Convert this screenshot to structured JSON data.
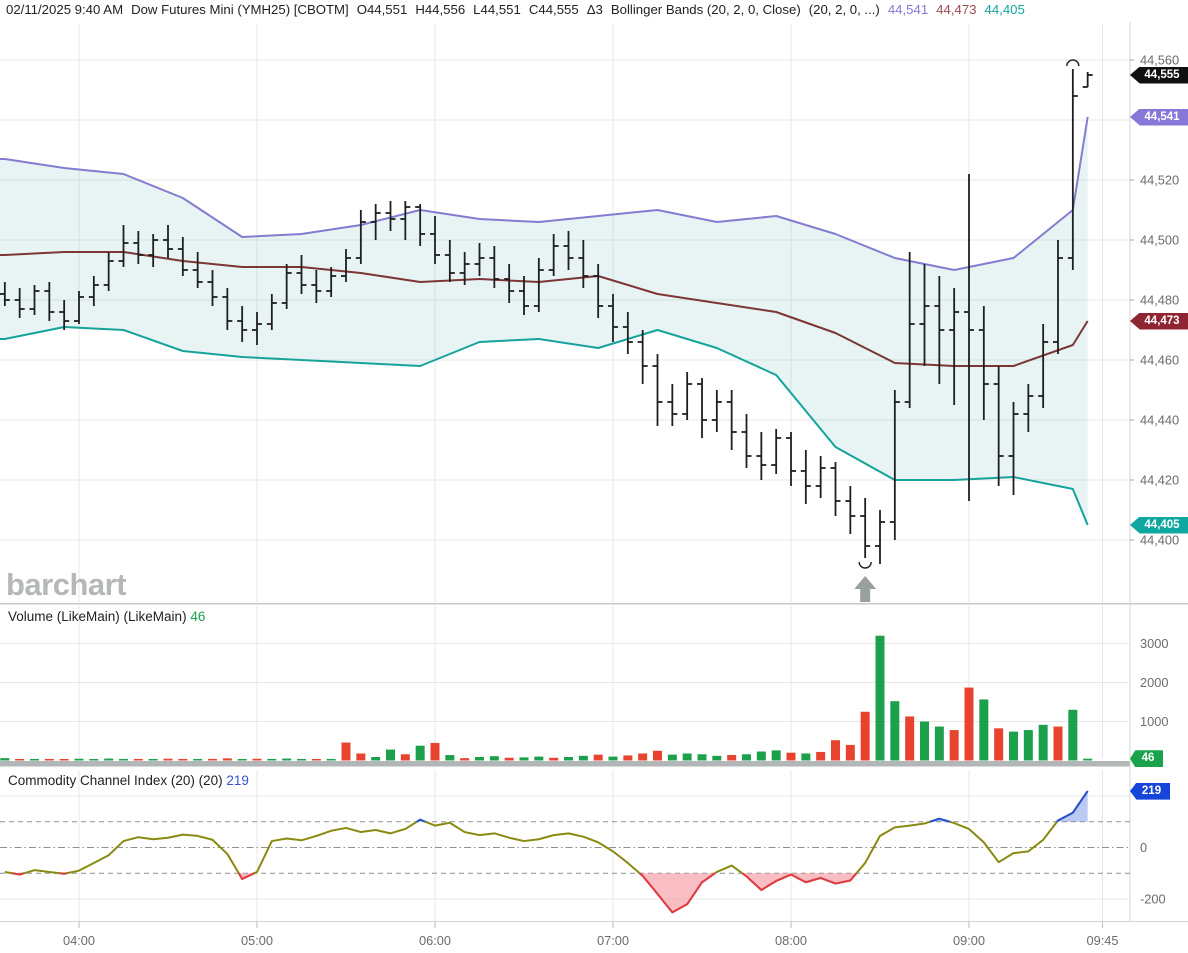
{
  "header": {
    "segments": [
      {
        "text": "02/11/2025 9:40 AM",
        "color": "#222222"
      },
      {
        "text": "Dow Futures Mini (YMH25) [CBOTM]",
        "color": "#222222"
      },
      {
        "text": "O44,551",
        "color": "#222222"
      },
      {
        "text": "H44,556",
        "color": "#222222"
      },
      {
        "text": "L44,551",
        "color": "#222222"
      },
      {
        "text": "C44,555",
        "color": "#222222"
      },
      {
        "text": "Δ3",
        "color": "#222222"
      },
      {
        "text": "Bollinger Bands (20, 2, 0, Close)",
        "color": "#222222"
      },
      {
        "text": "(20, 2, 0, ...)",
        "color": "#222222"
      },
      {
        "text": "44,541",
        "color": "#8678d9"
      },
      {
        "text": "44,473",
        "color": "#9c4a54"
      },
      {
        "text": "44,405",
        "color": "#12a5a0"
      }
    ]
  },
  "watermark": "barchart",
  "panels": {
    "volume": {
      "title": "Volume (LikeMain)  (LikeMain)",
      "value": "46",
      "value_color": "#1aa34c"
    },
    "cci": {
      "title": "Commodity Channel Index (20)  (20)",
      "value": "219",
      "value_color": "#3556cc"
    }
  },
  "axes": {
    "price": {
      "grid": [
        44560,
        44540,
        44520,
        44500,
        44480,
        44460,
        44440,
        44420,
        44400
      ],
      "labels": [
        {
          "text": "44,560",
          "price": 44560
        },
        {
          "text": "44,520",
          "price": 44520
        },
        {
          "text": "44,500",
          "price": 44500
        },
        {
          "text": "44,480",
          "price": 44480
        },
        {
          "text": "44,460",
          "price": 44460
        },
        {
          "text": "44,440",
          "price": 44440
        },
        {
          "text": "44,420",
          "price": 44420
        },
        {
          "text": "44,400",
          "price": 44400
        }
      ],
      "badges": [
        {
          "text": "44,555",
          "price": 44555,
          "color": "#101010"
        },
        {
          "text": "44,541",
          "price": 44541,
          "color": "#8677d9"
        },
        {
          "text": "44,473",
          "price": 44473,
          "color": "#8f2433"
        },
        {
          "text": "44,405",
          "price": 44405,
          "color": "#0fa8a0"
        }
      ]
    },
    "volume": {
      "grid": [
        1000,
        2000,
        3000
      ],
      "labels": [
        {
          "text": "3000",
          "v": 3000
        },
        {
          "text": "2000",
          "v": 2000
        },
        {
          "text": "1000",
          "v": 1000
        }
      ],
      "badge": {
        "text": "46",
        "v": 46,
        "color": "#1aa34c"
      }
    },
    "cci": {
      "grid_solid": [
        200,
        -200
      ],
      "grid_dashed": [
        100,
        -100
      ],
      "grid_dashdot": [
        0
      ],
      "labels": [
        {
          "text": "0",
          "v": 0
        },
        {
          "text": "-200",
          "v": -200
        }
      ],
      "badge": {
        "text": "219",
        "v": 219,
        "color": "#1646d9"
      }
    },
    "time": {
      "ticks": [
        {
          "label": "04:00",
          "t": 240
        },
        {
          "label": "05:00",
          "t": 300
        },
        {
          "label": "06:00",
          "t": 360
        },
        {
          "label": "07:00",
          "t": 420
        },
        {
          "label": "08:00",
          "t": 480
        },
        {
          "label": "09:00",
          "t": 540
        },
        {
          "label": "09:45",
          "t": 585
        }
      ]
    }
  },
  "chart_data": {
    "type": "ohlc+volume+cci",
    "symbol": "Dow Futures Mini (YMH25) [CBOTM]",
    "timestamp": "02/11/2025 9:40 AM",
    "interval_minutes": 5,
    "start_time": "03:35",
    "price_range": [
      44400,
      44560
    ],
    "ohlc": [
      [
        44482,
        44486,
        44478,
        44480
      ],
      [
        44480,
        44484,
        44474,
        44477
      ],
      [
        44477,
        44485,
        44475,
        44483
      ],
      [
        44483,
        44486,
        44473,
        44476
      ],
      [
        44476,
        44480,
        44470,
        44473
      ],
      [
        44473,
        44483,
        44472,
        44481
      ],
      [
        44481,
        44488,
        44478,
        44485
      ],
      [
        44485,
        44496,
        44483,
        44493
      ],
      [
        44493,
        44505,
        44491,
        44499
      ],
      [
        44499,
        44503,
        44492,
        44495
      ],
      [
        44495,
        44502,
        44491,
        44500
      ],
      [
        44500,
        44505,
        44494,
        44497
      ],
      [
        44497,
        44501,
        44488,
        44490
      ],
      [
        44490,
        44496,
        44484,
        44486
      ],
      [
        44486,
        44490,
        44478,
        44481
      ],
      [
        44481,
        44484,
        44470,
        44473
      ],
      [
        44473,
        44478,
        44466,
        44470
      ],
      [
        44470,
        44476,
        44465,
        44472
      ],
      [
        44472,
        44482,
        44470,
        44479
      ],
      [
        44479,
        44492,
        44477,
        44489
      ],
      [
        44489,
        44495,
        44482,
        44485
      ],
      [
        44485,
        44490,
        44479,
        44483
      ],
      [
        44483,
        44491,
        44481,
        44488
      ],
      [
        44488,
        44497,
        44486,
        44494
      ],
      [
        44494,
        44510,
        44492,
        44506
      ],
      [
        44506,
        44512,
        44500,
        44509
      ],
      [
        44509,
        44513,
        44503,
        44507
      ],
      [
        44507,
        44513,
        44500,
        44511
      ],
      [
        44511,
        44512,
        44498,
        44502
      ],
      [
        44502,
        44508,
        44492,
        44495
      ],
      [
        44495,
        44500,
        44486,
        44489
      ],
      [
        44489,
        44496,
        44485,
        44492
      ],
      [
        44492,
        44499,
        44488,
        44494
      ],
      [
        44494,
        44498,
        44484,
        44487
      ],
      [
        44487,
        44492,
        44479,
        44483
      ],
      [
        44483,
        44488,
        44475,
        44478
      ],
      [
        44478,
        44494,
        44476,
        44490
      ],
      [
        44490,
        44502,
        44488,
        44498
      ],
      [
        44498,
        44503,
        44490,
        44494
      ],
      [
        44494,
        44500,
        44484,
        44488
      ],
      [
        44488,
        44492,
        44474,
        44478
      ],
      [
        44478,
        44482,
        44466,
        44471
      ],
      [
        44471,
        44476,
        44462,
        44466
      ],
      [
        44466,
        44470,
        44452,
        44458
      ],
      [
        44458,
        44462,
        44438,
        44446
      ],
      [
        44446,
        44452,
        44438,
        44442
      ],
      [
        44442,
        44456,
        44440,
        44452
      ],
      [
        44452,
        44454,
        44434,
        44440
      ],
      [
        44440,
        44450,
        44436,
        44446
      ],
      [
        44446,
        44450,
        44430,
        44436
      ],
      [
        44436,
        44442,
        44424,
        44428
      ],
      [
        44428,
        44436,
        44420,
        44425
      ],
      [
        44425,
        44437,
        44422,
        44434
      ],
      [
        44434,
        44436,
        44418,
        44423
      ],
      [
        44423,
        44430,
        44412,
        44418
      ],
      [
        44418,
        44428,
        44414,
        44424
      ],
      [
        44424,
        44426,
        44408,
        44413
      ],
      [
        44413,
        44418,
        44402,
        44408
      ],
      [
        44408,
        44414,
        44394,
        44398
      ],
      [
        44398,
        44410,
        44392,
        44406
      ],
      [
        44406,
        44450,
        44400,
        44446
      ],
      [
        44446,
        44496,
        44444,
        44472
      ],
      [
        44472,
        44492,
        44458,
        44478
      ],
      [
        44478,
        44488,
        44452,
        44470
      ],
      [
        44470,
        44484,
        44445,
        44476
      ],
      [
        44476,
        44522,
        44413,
        44470
      ],
      [
        44470,
        44478,
        44440,
        44452
      ],
      [
        44452,
        44458,
        44418,
        44428
      ],
      [
        44428,
        44446,
        44415,
        44442
      ],
      [
        44442,
        44452,
        44436,
        44448
      ],
      [
        44448,
        44472,
        44444,
        44466
      ],
      [
        44466,
        44500,
        44462,
        44494
      ],
      [
        44494,
        44557,
        44490,
        44548
      ],
      [
        44551,
        44556,
        44551,
        44555
      ]
    ],
    "bollinger": {
      "settings": "20, 2, 0, Close",
      "points": [
        [
          0,
          44527,
          44495,
          44467
        ],
        [
          4,
          44524,
          44496,
          44471
        ],
        [
          8,
          44522,
          44496,
          44470
        ],
        [
          12,
          44514,
          44493,
          44463
        ],
        [
          16,
          44501,
          44491,
          44461
        ],
        [
          20,
          44502,
          44491,
          44460
        ],
        [
          24,
          44505,
          44489,
          44459
        ],
        [
          28,
          44510,
          44486,
          44458
        ],
        [
          32,
          44507,
          44487,
          44466
        ],
        [
          36,
          44506,
          44486,
          44467
        ],
        [
          40,
          44508,
          44488,
          44464
        ],
        [
          44,
          44510,
          44482,
          44470
        ],
        [
          48,
          44506,
          44479,
          44464
        ],
        [
          52,
          44508,
          44476,
          44455
        ],
        [
          56,
          44502,
          44469,
          44431
        ],
        [
          60,
          44494,
          44459,
          44420
        ],
        [
          64,
          44490,
          44458,
          44420
        ],
        [
          68,
          44494,
          44458,
          44421
        ],
        [
          72,
          44510,
          44465,
          44417
        ],
        [
          73,
          44541,
          44473,
          44405
        ]
      ]
    },
    "volume": [
      [
        60,
        "g"
      ],
      [
        30,
        "r"
      ],
      [
        25,
        "g"
      ],
      [
        40,
        "r"
      ],
      [
        30,
        "r"
      ],
      [
        45,
        "g"
      ],
      [
        35,
        "g"
      ],
      [
        50,
        "g"
      ],
      [
        40,
        "g"
      ],
      [
        35,
        "r"
      ],
      [
        30,
        "g"
      ],
      [
        45,
        "r"
      ],
      [
        35,
        "r"
      ],
      [
        30,
        "g"
      ],
      [
        40,
        "r"
      ],
      [
        55,
        "r"
      ],
      [
        35,
        "g"
      ],
      [
        45,
        "r"
      ],
      [
        40,
        "g"
      ],
      [
        50,
        "g"
      ],
      [
        35,
        "g"
      ],
      [
        30,
        "r"
      ],
      [
        40,
        "g"
      ],
      [
        460,
        "r"
      ],
      [
        180,
        "r"
      ],
      [
        90,
        "g"
      ],
      [
        280,
        "g"
      ],
      [
        160,
        "r"
      ],
      [
        380,
        "g"
      ],
      [
        450,
        "r"
      ],
      [
        140,
        "g"
      ],
      [
        60,
        "r"
      ],
      [
        90,
        "g"
      ],
      [
        110,
        "g"
      ],
      [
        70,
        "r"
      ],
      [
        80,
        "g"
      ],
      [
        100,
        "g"
      ],
      [
        70,
        "r"
      ],
      [
        90,
        "g"
      ],
      [
        120,
        "g"
      ],
      [
        150,
        "r"
      ],
      [
        100,
        "g"
      ],
      [
        130,
        "r"
      ],
      [
        180,
        "r"
      ],
      [
        250,
        "r"
      ],
      [
        150,
        "g"
      ],
      [
        180,
        "g"
      ],
      [
        160,
        "g"
      ],
      [
        120,
        "g"
      ],
      [
        140,
        "r"
      ],
      [
        160,
        "g"
      ],
      [
        230,
        "g"
      ],
      [
        260,
        "g"
      ],
      [
        200,
        "r"
      ],
      [
        180,
        "g"
      ],
      [
        220,
        "r"
      ],
      [
        520,
        "r"
      ],
      [
        400,
        "r"
      ],
      [
        1250,
        "r"
      ],
      [
        3200,
        "g"
      ],
      [
        1520,
        "g"
      ],
      [
        1130,
        "r"
      ],
      [
        1000,
        "g"
      ],
      [
        870,
        "g"
      ],
      [
        780,
        "r"
      ],
      [
        1870,
        "r"
      ],
      [
        1565,
        "g"
      ],
      [
        825,
        "r"
      ],
      [
        740,
        "g"
      ],
      [
        780,
        "g"
      ],
      [
        915,
        "g"
      ],
      [
        870,
        "r"
      ],
      [
        1300,
        "g"
      ],
      [
        46,
        "g"
      ]
    ],
    "cci": [
      -95,
      -105,
      -88,
      -95,
      -102,
      -90,
      -60,
      -30,
      25,
      40,
      32,
      38,
      50,
      45,
      30,
      -25,
      -122,
      -95,
      25,
      35,
      28,
      45,
      65,
      76,
      60,
      68,
      55,
      72,
      108,
      85,
      96,
      60,
      48,
      55,
      38,
      25,
      32,
      48,
      55,
      42,
      20,
      -15,
      -60,
      -110,
      -180,
      -252,
      -220,
      -135,
      -95,
      -70,
      -112,
      -165,
      -130,
      -105,
      -135,
      -118,
      -140,
      -128,
      -60,
      45,
      78,
      85,
      93,
      112,
      95,
      72,
      20,
      -57,
      -22,
      -15,
      30,
      105,
      135,
      219
    ],
    "annotations": [
      {
        "type": "session-low-marker",
        "bar": 58,
        "price": 44394,
        "arrow": true
      },
      {
        "type": "session-high-marker",
        "bar": 72,
        "price": 44557
      }
    ],
    "colors": {
      "bar": "#1f1f1f",
      "band_upper": "#837cd0",
      "band_middle": "#7d3535",
      "band_lower": "#16a39b",
      "band_fill": "rgba(72,170,163,0.13)",
      "vol_up": "#1ca04c",
      "vol_down": "#e8432e",
      "cci_line": "#8a8a10",
      "cci_over": "#2a4fd0",
      "cci_over_fill": "rgba(120,150,235,0.5)",
      "cci_under": "#e23a47",
      "cci_under_fill": "rgba(245,150,158,0.62)",
      "grid": "#e7e7e7",
      "level_dash": "#8f8f8f",
      "axis_text": "#6b6b6b",
      "arrow": "#9aa0a0"
    }
  }
}
